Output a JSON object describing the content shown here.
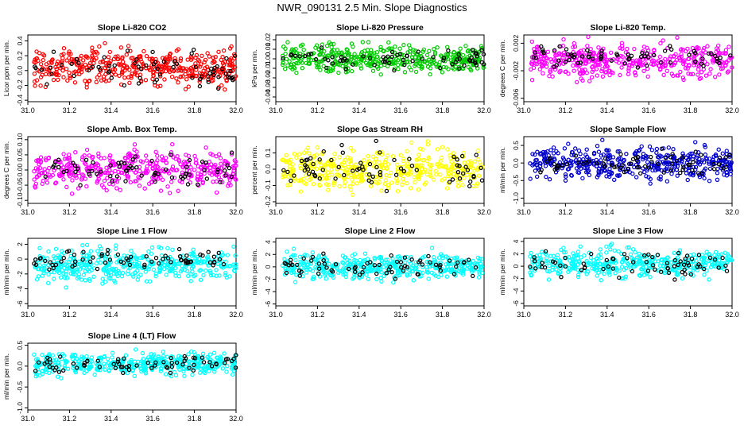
{
  "page": {
    "title": "NWR_090131  2.5 Min. Slope Diagnostics"
  },
  "chart_data": [
    {
      "type": "scatter",
      "title": "Slope Li-820 CO2",
      "ylabel": "Licor ppm per min.",
      "color": "#ff0000",
      "xlim": [
        31.0,
        32.0
      ],
      "ylim": [
        -0.42,
        0.48
      ],
      "yticks": [
        -0.4,
        -0.2,
        0.0,
        0.2,
        0.4
      ],
      "yticklabels": [
        "-0.4",
        "-0.2",
        "0.0",
        "0.2",
        "0.4"
      ],
      "xticks": [
        31.0,
        31.2,
        31.4,
        31.6,
        31.8,
        32.0
      ],
      "xticklabels": [
        "31.0",
        "31.2",
        "31.4",
        "31.6",
        "31.8",
        "32.0"
      ],
      "series": [
        {
          "name": "all",
          "color": "#ff0000",
          "center": 0.05,
          "spread": 0.12
        },
        {
          "name": "black",
          "color": "#000000",
          "center": 0.0,
          "spread": 0.12
        }
      ]
    },
    {
      "type": "scatter",
      "title": "Slope Li-820 Pressure",
      "ylabel": "kPa per min.",
      "color": "#00cc00",
      "xlim": [
        31.0,
        32.0
      ],
      "ylim": [
        -0.045,
        0.025
      ],
      "yticks": [
        -0.04,
        -0.03,
        -0.02,
        -0.01,
        0.0,
        0.01,
        0.02
      ],
      "yticklabels": [
        "-0.04",
        "-0.03",
        "-0.02",
        "-0.01",
        "0.00",
        "0.01",
        "0.02"
      ],
      "xticks": [
        31.0,
        31.2,
        31.4,
        31.6,
        31.8,
        32.0
      ],
      "xticklabels": [
        "31.0",
        "31.2",
        "31.4",
        "31.6",
        "31.8",
        "32.0"
      ],
      "series": [
        {
          "name": "all",
          "color": "#00cc00",
          "center": 0.0,
          "spread": 0.007
        },
        {
          "name": "black",
          "color": "#000000",
          "center": 0.0,
          "spread": 0.006
        }
      ]
    },
    {
      "type": "scatter",
      "title": "Slope Li-820 Temp.",
      "ylabel": "degrees C per min.",
      "color": "#ff00ff",
      "xlim": [
        31.0,
        32.0
      ],
      "ylim": [
        -0.0065,
        0.0032
      ],
      "yticks": [
        -0.006,
        -0.002,
        0.002
      ],
      "yticklabels": [
        "-0.006",
        "-0.002",
        "0.002"
      ],
      "xticks": [
        31.0,
        31.2,
        31.4,
        31.6,
        31.8,
        32.0
      ],
      "xticklabels": [
        "31.0",
        "31.2",
        "31.4",
        "31.6",
        "31.8",
        "32.0"
      ],
      "series": [
        {
          "name": "all",
          "color": "#ff00ff",
          "center": -0.0005,
          "spread": 0.0012
        },
        {
          "name": "black",
          "color": "#000000",
          "center": 0.0,
          "spread": 0.0008
        }
      ]
    },
    {
      "type": "scatter",
      "title": "Slope Amb. Box Temp.",
      "ylabel": "degrees C per min.",
      "color": "#ff00ff",
      "xlim": [
        31.0,
        32.0
      ],
      "ylim": [
        -0.11,
        0.11
      ],
      "yticks": [
        -0.1,
        -0.05,
        0.0,
        0.05,
        0.1
      ],
      "yticklabels": [
        "-0.10",
        "-0.05",
        "0.00",
        "0.05",
        "0.10"
      ],
      "xticks": [
        31.0,
        31.2,
        31.4,
        31.6,
        31.8,
        32.0
      ],
      "xticklabels": [
        "31.0",
        "31.2",
        "31.4",
        "31.6",
        "31.8",
        "32.0"
      ],
      "series": [
        {
          "name": "all",
          "color": "#ff00ff",
          "center": 0.0,
          "spread": 0.03
        },
        {
          "name": "black",
          "color": "#000000",
          "center": 0.0,
          "spread": 0.025
        }
      ]
    },
    {
      "type": "scatter",
      "title": "Slope Gas Stream RH",
      "ylabel": "percent per min.",
      "color": "#ffff00",
      "xlim": [
        31.0,
        32.0
      ],
      "ylim": [
        -0.21,
        0.2
      ],
      "yticks": [
        -0.2,
        -0.1,
        0.0,
        0.1
      ],
      "yticklabels": [
        "-0.2",
        "-0.1",
        "0.0",
        "0.1"
      ],
      "xticks": [
        31.0,
        31.2,
        31.4,
        31.6,
        31.8,
        32.0
      ],
      "xticklabels": [
        "31.0",
        "31.2",
        "31.4",
        "31.6",
        "31.8",
        "32.0"
      ],
      "series": [
        {
          "name": "all",
          "color": "#ffff00",
          "center": 0.0,
          "spread": 0.06
        },
        {
          "name": "black",
          "color": "#000000",
          "center": 0.0,
          "spread": 0.07
        }
      ]
    },
    {
      "type": "scatter",
      "title": "Slope Sample Flow",
      "ylabel": "ml/min per min.",
      "color": "#0000cc",
      "xlim": [
        31.0,
        32.0
      ],
      "ylim": [
        -1.15,
        0.75
      ],
      "yticks": [
        -1.0,
        -0.5,
        0.0,
        0.5
      ],
      "yticklabels": [
        "-1.0",
        "-0.5",
        "0.0",
        "0.5"
      ],
      "xticks": [
        31.0,
        31.2,
        31.4,
        31.6,
        31.8,
        32.0
      ],
      "xticklabels": [
        "31.0",
        "31.2",
        "31.4",
        "31.6",
        "31.8",
        "32.0"
      ],
      "series": [
        {
          "name": "all",
          "color": "#0000cc",
          "center": 0.0,
          "spread": 0.22
        },
        {
          "name": "black",
          "color": "#000000",
          "center": 0.0,
          "spread": 0.18
        }
      ]
    },
    {
      "type": "scatter",
      "title": "Slope Line 1 Flow",
      "ylabel": "ml/min per min.",
      "color": "#00ffff",
      "xlim": [
        31.0,
        32.0
      ],
      "ylim": [
        -6.3,
        2.8
      ],
      "yticks": [
        -6,
        -4,
        -2,
        0,
        2
      ],
      "yticklabels": [
        "-6",
        "-4",
        "-2",
        "0",
        "2"
      ],
      "xticks": [
        31.0,
        31.2,
        31.4,
        31.6,
        31.8,
        32.0
      ],
      "xticklabels": [
        "31.0",
        "31.2",
        "31.4",
        "31.6",
        "31.8",
        "32.0"
      ],
      "series": [
        {
          "name": "all",
          "color": "#00ffff",
          "center": -0.8,
          "spread": 1.1
        },
        {
          "name": "black",
          "color": "#000000",
          "center": 0.0,
          "spread": 0.6
        }
      ]
    },
    {
      "type": "scatter",
      "title": "Slope Line 2 Flow",
      "ylabel": "ml/min per min.",
      "color": "#00ffff",
      "xlim": [
        31.0,
        32.0
      ],
      "ylim": [
        -6.3,
        4.6
      ],
      "yticks": [
        -6,
        -4,
        -2,
        0,
        2,
        4
      ],
      "yticklabels": [
        "-6",
        "-4",
        "-2",
        "0",
        "2",
        "4"
      ],
      "xticks": [
        31.0,
        31.2,
        31.4,
        31.6,
        31.8,
        32.0
      ],
      "xticklabels": [
        "31.0",
        "31.2",
        "31.4",
        "31.6",
        "31.8",
        "32.0"
      ],
      "series": [
        {
          "name": "all",
          "color": "#00ffff",
          "center": 0.0,
          "spread": 1.0
        },
        {
          "name": "black",
          "color": "#000000",
          "center": 0.0,
          "spread": 1.0
        }
      ]
    },
    {
      "type": "scatter",
      "title": "Slope Line 3 Flow",
      "ylabel": "ml/min per min.",
      "color": "#00ffff",
      "xlim": [
        31.0,
        32.0
      ],
      "ylim": [
        -6.4,
        4.5
      ],
      "yticks": [
        -6,
        -4,
        -2,
        0,
        2,
        4
      ],
      "yticklabels": [
        "-6",
        "-4",
        "-2",
        "0",
        "2",
        "4"
      ],
      "xticks": [
        31.0,
        31.2,
        31.4,
        31.6,
        31.8,
        32.0
      ],
      "xticklabels": [
        "31.0",
        "31.2",
        "31.4",
        "31.6",
        "31.8",
        "32.0"
      ],
      "series": [
        {
          "name": "all",
          "color": "#00ffff",
          "center": 0.5,
          "spread": 1.1
        },
        {
          "name": "black",
          "color": "#000000",
          "center": 0.5,
          "spread": 1.1
        }
      ]
    },
    {
      "type": "scatter",
      "title": "Slope Line 4 (LT) Flow",
      "ylabel": "ml/min per min.",
      "color": "#00ffff",
      "xlim": [
        31.0,
        32.0
      ],
      "ylim": [
        -1.05,
        0.55
      ],
      "yticks": [
        -1.0,
        -0.5,
        0.0,
        0.5
      ],
      "yticklabels": [
        "-1.0",
        "-0.5",
        "0.0",
        "0.5"
      ],
      "xticks": [
        31.0,
        31.2,
        31.4,
        31.6,
        31.8,
        32.0
      ],
      "xticklabels": [
        "31.0",
        "31.2",
        "31.4",
        "31.6",
        "31.8",
        "32.0"
      ],
      "series": [
        {
          "name": "all",
          "color": "#00ffff",
          "center": 0.05,
          "spread": 0.13
        },
        {
          "name": "black",
          "color": "#000000",
          "center": 0.05,
          "spread": 0.1
        }
      ]
    }
  ]
}
